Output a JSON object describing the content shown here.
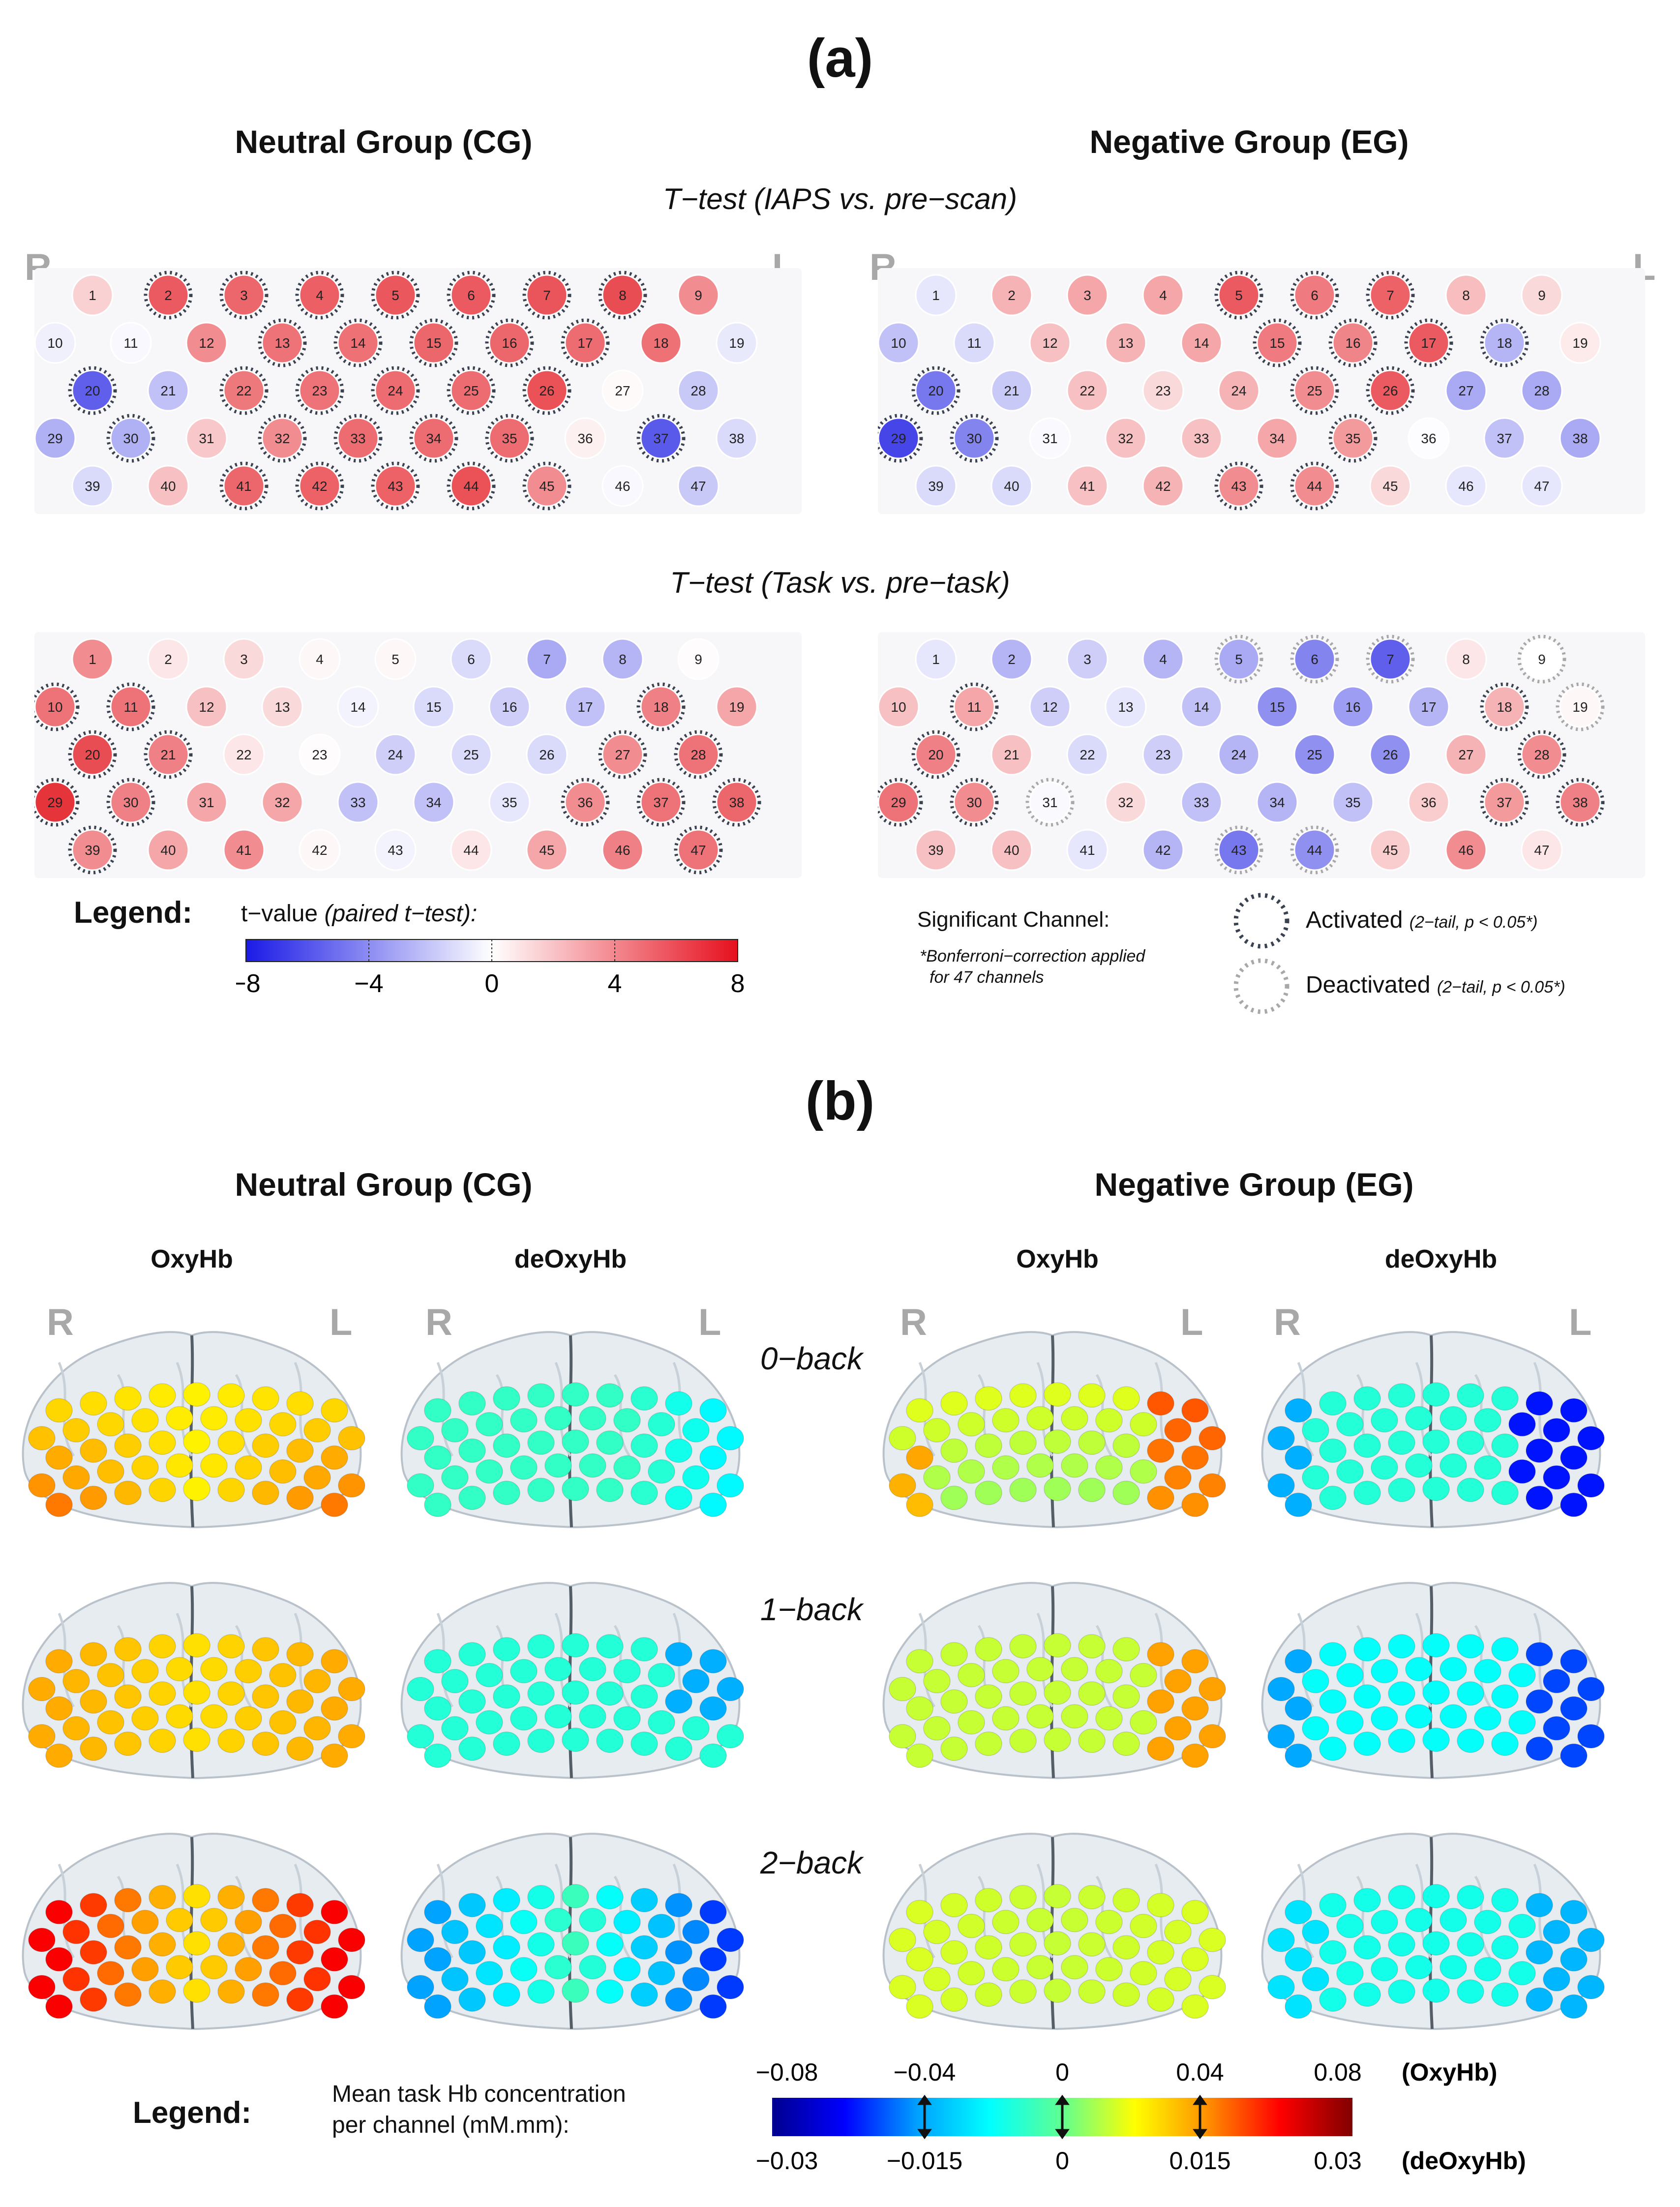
{
  "panel_a": {
    "letter": "(a)",
    "groups": [
      "Neutral Group (CG)",
      "Negative Group (EG)"
    ],
    "ttest1": "T−test (IAPS vs. pre−scan)",
    "ttest2": "T−test (Task vs. pre−task)",
    "side_r": "R",
    "side_l": "L",
    "maps": [
      {
        "group": "Neutral Group (CG)",
        "test": "IAPS vs. pre-scan",
        "t": [
          1.8,
          6.5,
          6,
          6.3,
          6.6,
          6.5,
          6.7,
          7,
          4.5,
          -0.6,
          -0.3,
          4.5,
          5.5,
          5.6,
          6,
          6,
          5.8,
          5.6,
          -0.9,
          -6.5,
          -2.5,
          5.3,
          5.5,
          5.8,
          5.8,
          6.8,
          0.2,
          -2.2,
          -3.2,
          -3.2,
          2.2,
          4.5,
          5.8,
          5.8,
          5.8,
          0.6,
          -6.7,
          -1.5,
          -1.5,
          2.5,
          6,
          6.2,
          6.2,
          6.8,
          4.5,
          -0.3,
          -2.2
        ],
        "sig": [
          0,
          1,
          1,
          1,
          1,
          1,
          1,
          1,
          0,
          0,
          0,
          0,
          1,
          1,
          1,
          1,
          1,
          0,
          0,
          1,
          0,
          1,
          1,
          1,
          1,
          1,
          0,
          0,
          0,
          1,
          0,
          1,
          1,
          1,
          1,
          0,
          1,
          0,
          0,
          0,
          1,
          1,
          1,
          1,
          1,
          0,
          0
        ]
      },
      {
        "group": "Negative Group (EG)",
        "test": "IAPS vs. pre-scan",
        "t": [
          -1,
          3,
          3.5,
          3.5,
          6.5,
          5.2,
          6.2,
          2.6,
          1.5,
          -2.5,
          -1.5,
          2.5,
          3,
          3.5,
          5.2,
          4.8,
          6.5,
          -3,
          0.8,
          -5.5,
          -2.2,
          2.5,
          1.5,
          3,
          4.5,
          6.5,
          -3.5,
          -3.5,
          -7.5,
          -5,
          -0.2,
          2.5,
          2.5,
          3.5,
          4,
          -0.1,
          -2.5,
          -3.5,
          -1.5,
          -1.5,
          2.5,
          3,
          4.5,
          4.5,
          1.5,
          -1,
          -1
        ],
        "sig": [
          0,
          0,
          0,
          0,
          1,
          1,
          1,
          0,
          0,
          0,
          0,
          0,
          0,
          0,
          1,
          1,
          1,
          1,
          0,
          1,
          0,
          0,
          0,
          0,
          1,
          1,
          0,
          0,
          1,
          1,
          0,
          0,
          0,
          0,
          1,
          0,
          0,
          0,
          0,
          0,
          0,
          0,
          1,
          1,
          0,
          0,
          0
        ]
      },
      {
        "group": "Neutral Group (CG)",
        "test": "Task vs. pre-task",
        "t": [
          4.5,
          1,
          1.5,
          0.3,
          0.3,
          -1.5,
          -3.5,
          -3,
          0.1,
          5.5,
          5.5,
          2.5,
          1.5,
          -0.5,
          -1.5,
          -2,
          -2.5,
          5,
          3.5,
          7,
          5,
          1,
          0.1,
          -2,
          -1.5,
          -1.5,
          4.5,
          5.5,
          8,
          5,
          3.5,
          3.5,
          -2.5,
          -2.5,
          -1,
          4.5,
          5.5,
          6,
          4.5,
          3.5,
          4.5,
          0.3,
          -0.5,
          1,
          3.5,
          5,
          5.5
        ],
        "sig": [
          0,
          0,
          0,
          0,
          0,
          0,
          0,
          0,
          0,
          1,
          1,
          0,
          0,
          0,
          0,
          0,
          0,
          1,
          0,
          1,
          1,
          0,
          0,
          0,
          0,
          0,
          1,
          1,
          1,
          1,
          0,
          0,
          0,
          0,
          0,
          1,
          1,
          1,
          1,
          0,
          0,
          0,
          0,
          0,
          0,
          0,
          1
        ]
      },
      {
        "group": "Negative Group (EG)",
        "test": "Task vs. pre-task",
        "t": [
          -1,
          -3,
          -2,
          -3,
          -3.5,
          -5,
          -6.5,
          1,
          0,
          2.5,
          3.5,
          -2,
          -1,
          -2.5,
          -4.5,
          -4,
          -3,
          3,
          0.3,
          5,
          2.5,
          -1.5,
          -2,
          -3,
          -4.5,
          -4.5,
          3,
          4.5,
          5.5,
          4.5,
          -0.2,
          1.5,
          -2.5,
          -3,
          -2.5,
          2,
          4,
          5,
          2.5,
          2.5,
          -1,
          -3,
          -5.5,
          -4.5,
          2,
          4.5,
          1
        ],
        "sig": [
          0,
          0,
          0,
          0,
          2,
          2,
          2,
          0,
          2,
          0,
          1,
          0,
          0,
          0,
          0,
          0,
          0,
          1,
          2,
          1,
          0,
          0,
          0,
          0,
          0,
          0,
          0,
          1,
          1,
          1,
          2,
          0,
          0,
          0,
          0,
          0,
          1,
          1,
          0,
          0,
          0,
          0,
          2,
          2,
          0,
          0,
          0
        ]
      }
    ],
    "legend": {
      "title": "Legend",
      "tvalue_label": "t−value",
      "tvalue_paren": "(paired t−test):",
      "ticks": [
        "−8",
        "−4",
        "0",
        "4",
        "8"
      ],
      "significant_label": "Significant Channel:",
      "bonferroni": "*Bonferroni−correction applied",
      "bonferroni2": "for 47 channels",
      "activated": "Activated",
      "activated_note": "(2−tail, p < 0.05*)",
      "deactivated": "Deactivated",
      "deactivated_note": "(2−tail, p < 0.05*)"
    }
  },
  "panel_b": {
    "letter": "(b)",
    "groups": [
      "Neutral Group (CG)",
      "Negative Group (EG)"
    ],
    "columns": [
      "OxyHb",
      "deOxyHb",
      "OxyHb",
      "deOxyHb"
    ],
    "conditions": [
      "0−back",
      "1−back",
      "2−back"
    ],
    "side_r": "R",
    "side_l": "L",
    "legend": {
      "title": "Legend",
      "desc1": "Mean  task Hb concentration",
      "desc2": "per channel (mM.mm):",
      "oxy_ticks": [
        "−0.08",
        "−0.04",
        "0",
        "0.04",
        "0.08"
      ],
      "deoxy_ticks": [
        "−0.03",
        "−0.015",
        "0",
        "0.015",
        "0.03"
      ],
      "oxy_label": "(OxyHb)",
      "deoxy_label": "(deOxyHb)"
    }
  },
  "colors": {
    "tmap_neg": "#3a3ae6",
    "tmap_pos": "#e6343b",
    "activated_ring": "#3a4250",
    "deactivated_ring": "#a8a8a8"
  }
}
